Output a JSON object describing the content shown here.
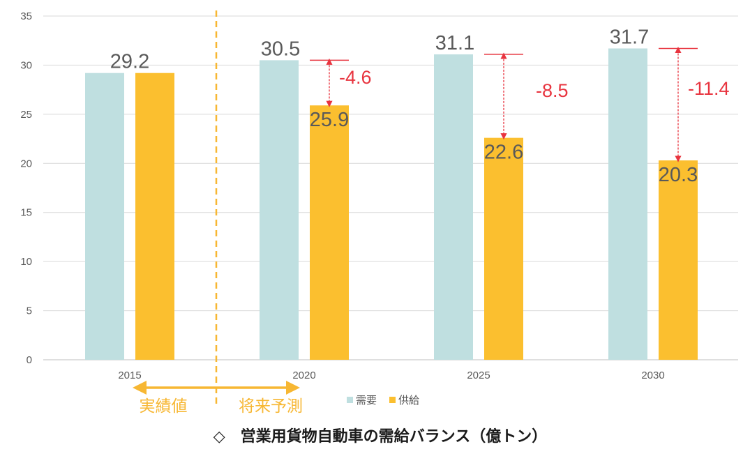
{
  "chart_data": {
    "type": "bar",
    "title": "◇　営業用貨物自動車の需給バランス（億トン）",
    "categories": [
      "2015",
      "2020",
      "2025",
      "2030"
    ],
    "series": [
      {
        "name": "需要",
        "values": [
          29.2,
          30.5,
          31.1,
          31.7
        ],
        "color": "#bfdfe0"
      },
      {
        "name": "供給",
        "values": [
          29.2,
          25.9,
          22.6,
          20.3
        ],
        "color": "#fbbf2f"
      }
    ],
    "value_labels": [
      "29.2",
      "30.5",
      "31.1",
      "31.7"
    ],
    "supply_labels": [
      "",
      "25.9",
      "22.6",
      "20.3"
    ],
    "gaps": [
      {
        "category": "2020",
        "value": -4.6,
        "label": "-4.6"
      },
      {
        "category": "2025",
        "value": -8.5,
        "label": "-8.5"
      },
      {
        "category": "2030",
        "value": -11.4,
        "label": "-11.4"
      }
    ],
    "ylim": [
      0,
      35
    ],
    "yticks": [
      0,
      5,
      10,
      15,
      20,
      25,
      30,
      35
    ],
    "grid": true,
    "legend_position": "bottom",
    "periods": {
      "actual": "実績値",
      "forecast": "将来予測"
    },
    "colors": {
      "gap": "#e8343f",
      "divider": "#f7b733",
      "grid": "#d9d9d9",
      "text": "#595959"
    }
  }
}
